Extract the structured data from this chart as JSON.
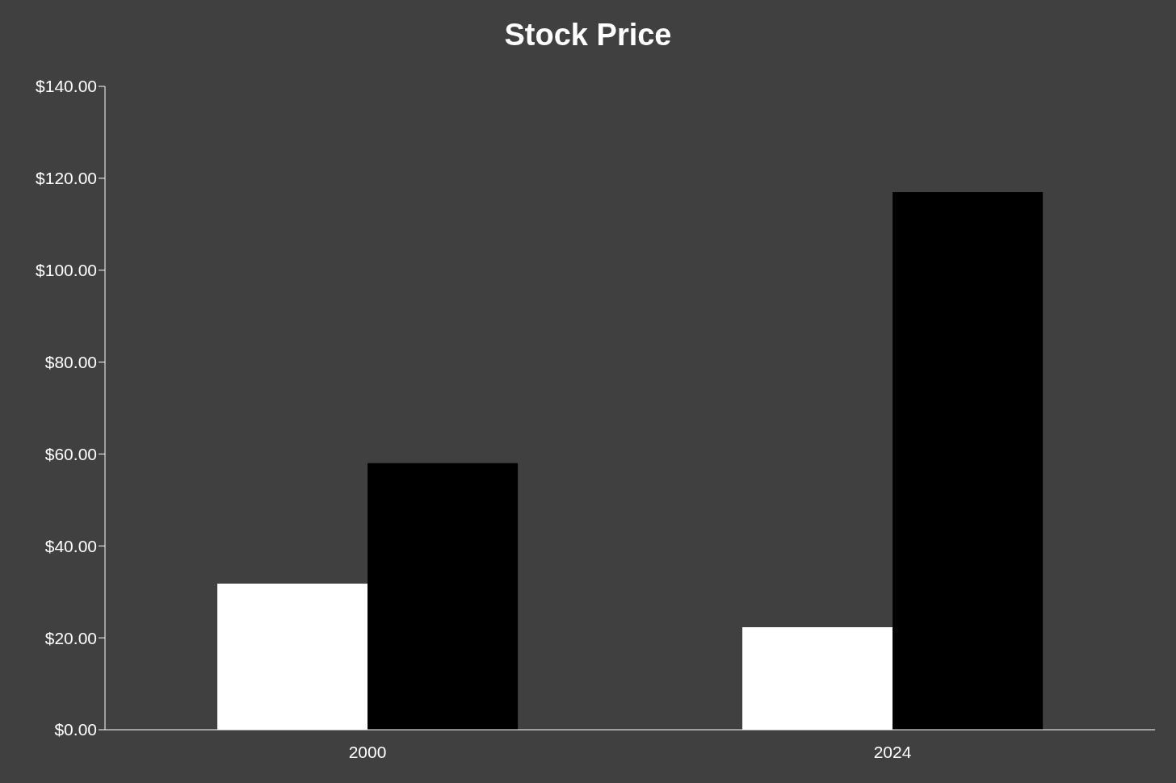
{
  "chart_data": {
    "type": "bar",
    "title": "Stock Price",
    "categories": [
      "2000",
      "2024"
    ],
    "series": [
      {
        "color": "#ffffff",
        "values": [
          31.8,
          22.3
        ]
      },
      {
        "color": "#000000",
        "values": [
          58.0,
          117.0
        ]
      }
    ],
    "ylim": [
      0,
      140
    ],
    "yticks": [
      {
        "value": 0,
        "label": "$0.00"
      },
      {
        "value": 20,
        "label": "$20.00"
      },
      {
        "value": 40,
        "label": "$40.00"
      },
      {
        "value": 60,
        "label": "$60.00"
      },
      {
        "value": 80,
        "label": "$80.00"
      },
      {
        "value": 100,
        "label": "$100.00"
      },
      {
        "value": 120,
        "label": "$120.00"
      },
      {
        "value": 140,
        "label": "$140.00"
      }
    ]
  }
}
